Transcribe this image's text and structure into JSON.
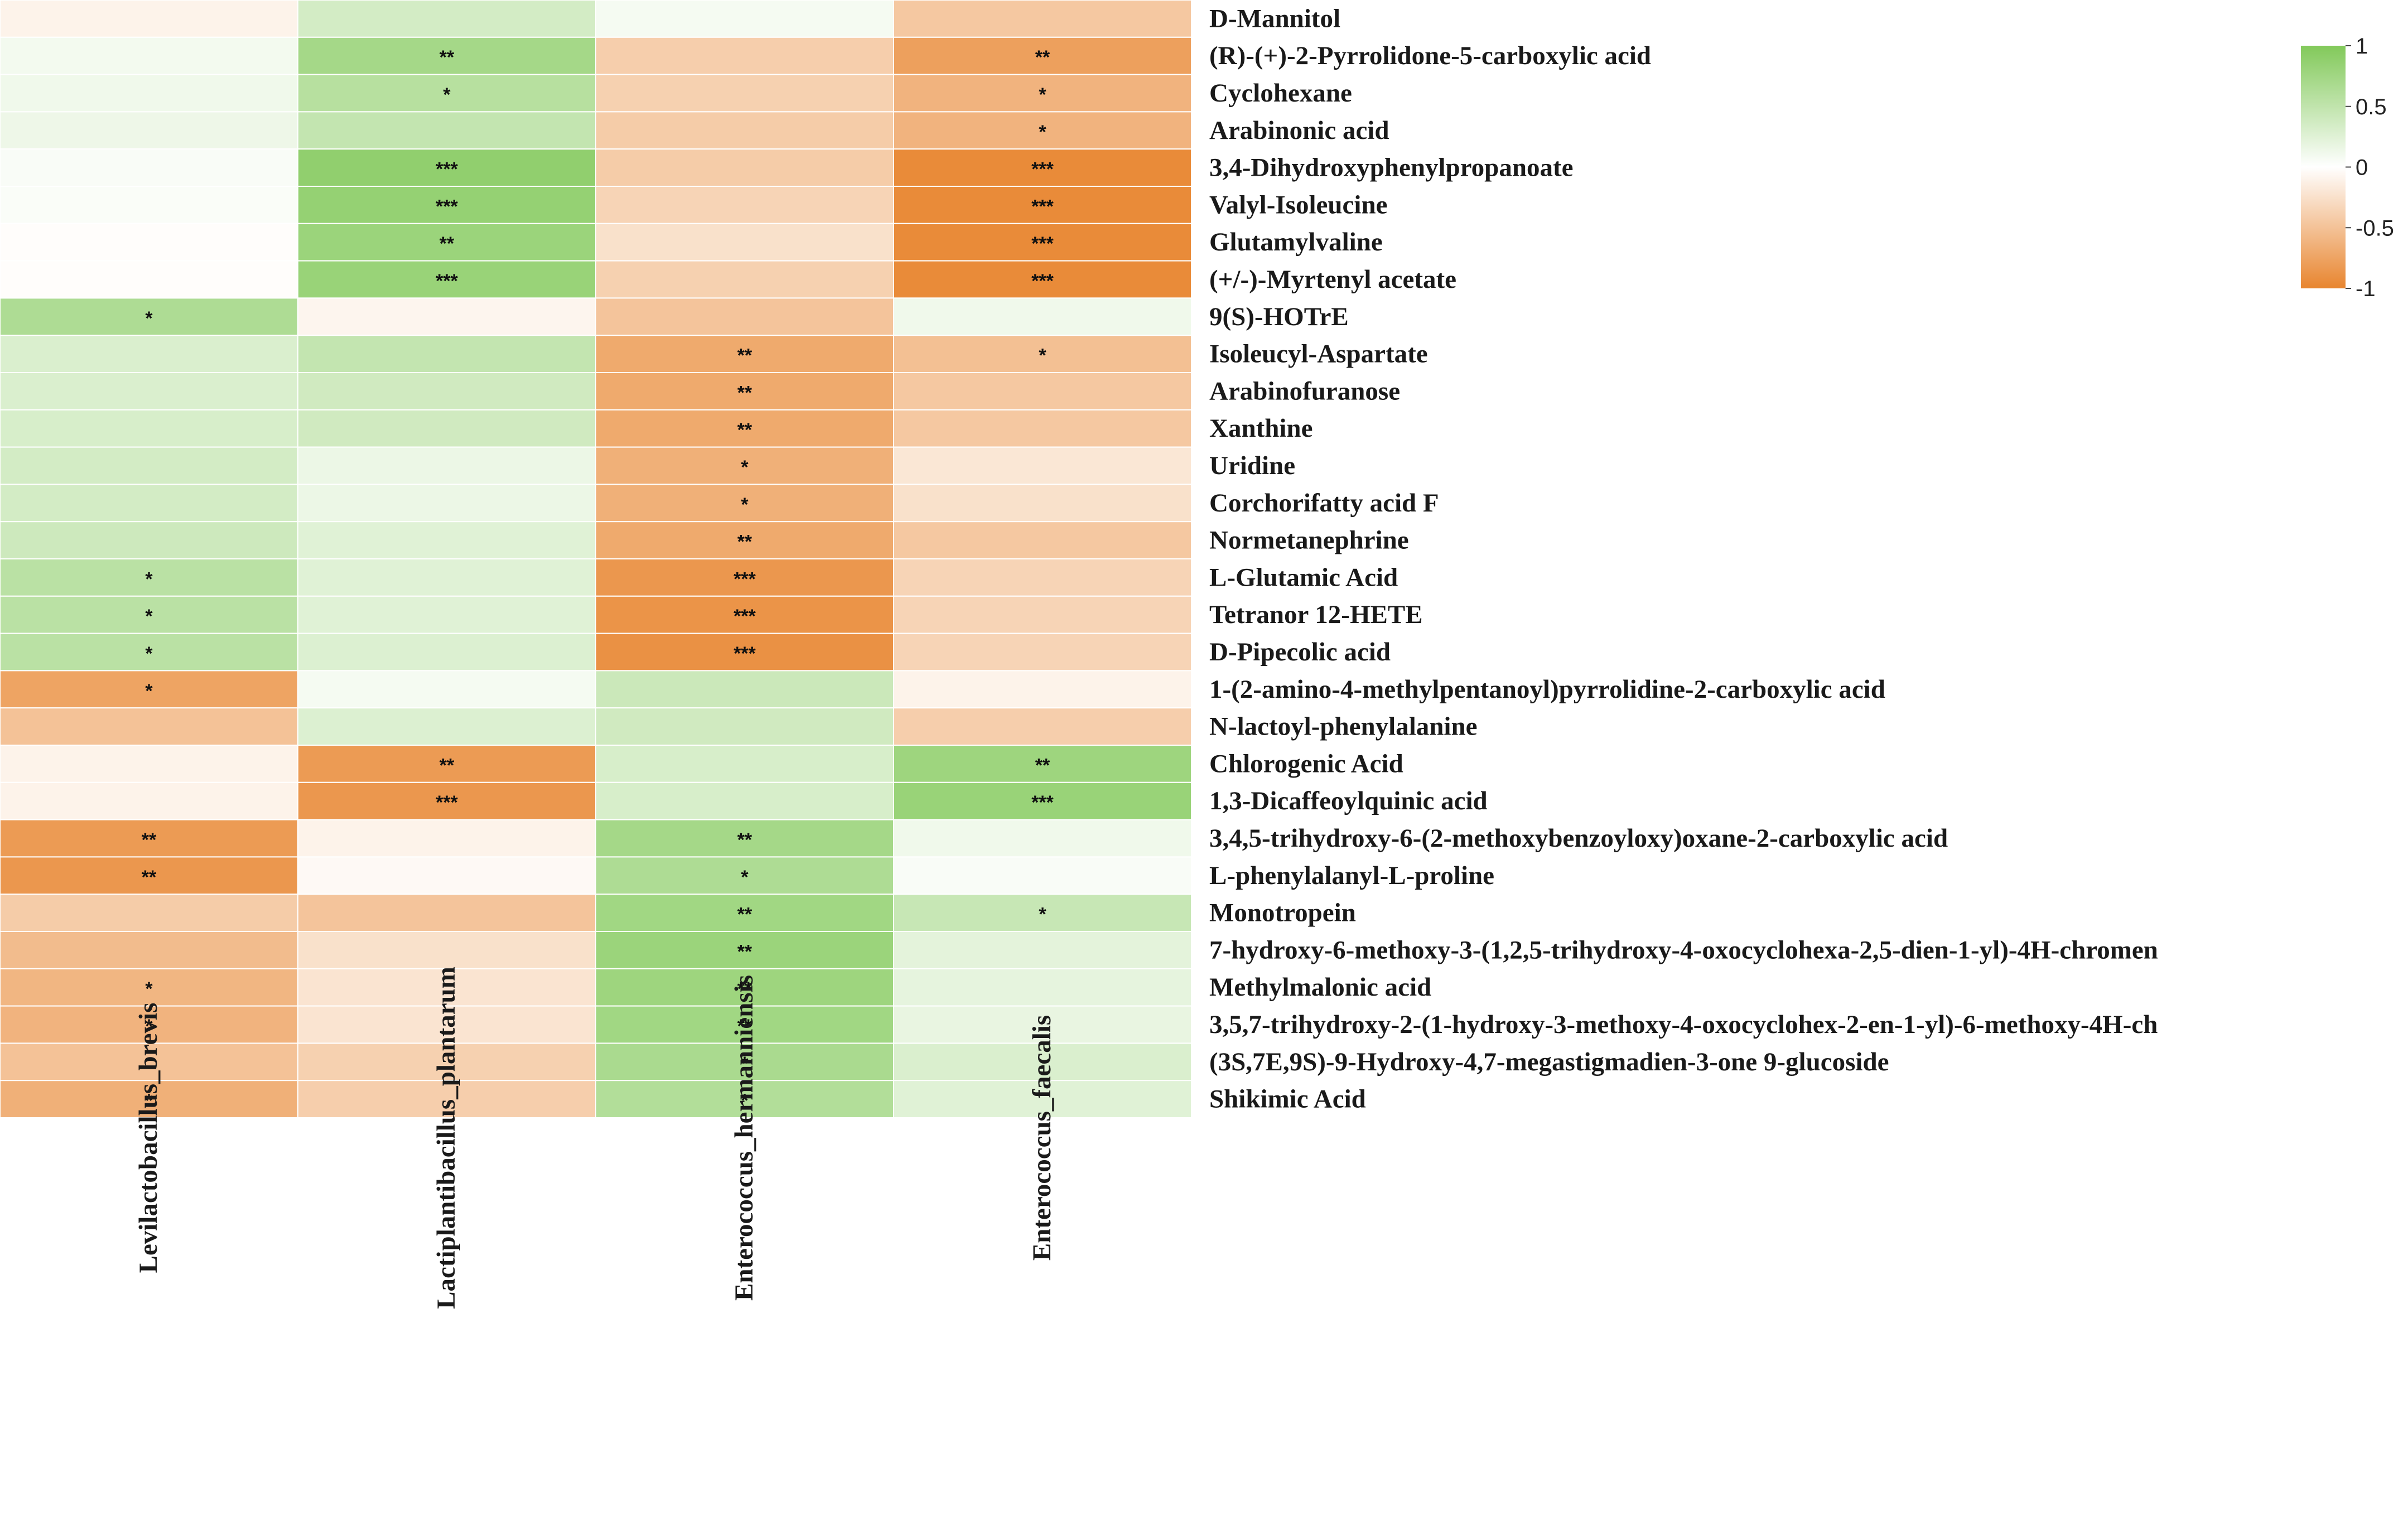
{
  "chart_data": {
    "type": "heatmap",
    "title": "",
    "columns": [
      "Levilactobacillus_brevis",
      "Lactiplantibacillus_plantarum",
      "Enterococcus_hermanniensis",
      "Enterococcus_faecalis"
    ],
    "rows": [
      "D-Mannitol",
      "(R)-(+)-2-Pyrrolidone-5-carboxylic acid",
      "Cyclohexane",
      "Arabinonic acid",
      "3,4-Dihydroxyphenylpropanoate",
      "Valyl-Isoleucine",
      "Glutamylvaline",
      "(+/-)-Myrtenyl acetate",
      "9(S)-HOTrE",
      "Isoleucyl-Aspartate",
      "Arabinofuranose",
      "Xanthine",
      "Uridine",
      "Corchorifatty acid F",
      "Normetanephrine",
      "L-Glutamic Acid",
      "Tetranor 12-HETE",
      "D-Pipecolic acid",
      "1-(2-amino-4-methylpentanoyl)pyrrolidine-2-carboxylic acid",
      "N-lactoyl-phenylalanine",
      "Chlorogenic Acid",
      "1,3-Dicaffeoylquinic acid",
      "3,4,5-trihydroxy-6-(2-methoxybenzoyloxy)oxane-2-carboxylic acid",
      "L-phenylalanyl-L-proline",
      "Monotropein",
      "7-hydroxy-6-methoxy-3-(1,2,5-trihydroxy-4-oxocyclohexa-2,5-dien-1-yl)-4H-chromen",
      "Methylmalonic acid",
      "3,5,7-trihydroxy-2-(1-hydroxy-3-methoxy-4-oxocyclohex-2-en-1-yl)-6-methoxy-4H-ch",
      "(3S,7E,9S)-9-Hydroxy-4,7-megastigmadien-3-one 9-glucoside",
      "Shikimic Acid"
    ],
    "values": [
      [
        -0.1,
        0.35,
        0.08,
        -0.45
      ],
      [
        0.1,
        0.72,
        -0.4,
        -0.78
      ],
      [
        0.12,
        0.58,
        -0.38,
        -0.62
      ],
      [
        0.14,
        0.48,
        -0.42,
        -0.62
      ],
      [
        0.05,
        0.88,
        -0.42,
        -0.95
      ],
      [
        0.04,
        0.85,
        -0.35,
        -0.95
      ],
      [
        -0.02,
        0.8,
        -0.25,
        -0.95
      ],
      [
        -0.02,
        0.82,
        -0.38,
        -0.95
      ],
      [
        0.65,
        -0.08,
        -0.48,
        0.12
      ],
      [
        0.3,
        0.48,
        -0.7,
        -0.52
      ],
      [
        0.3,
        0.38,
        -0.7,
        -0.45
      ],
      [
        0.32,
        0.38,
        -0.7,
        -0.45
      ],
      [
        0.35,
        0.15,
        -0.65,
        -0.2
      ],
      [
        0.35,
        0.15,
        -0.65,
        -0.25
      ],
      [
        0.4,
        0.25,
        -0.7,
        -0.45
      ],
      [
        0.55,
        0.25,
        -0.85,
        -0.35
      ],
      [
        0.55,
        0.25,
        -0.88,
        -0.35
      ],
      [
        0.55,
        0.28,
        -0.9,
        -0.35
      ],
      [
        -0.75,
        0.08,
        0.42,
        -0.1
      ],
      [
        -0.5,
        0.28,
        0.38,
        -0.4
      ],
      [
        -0.1,
        -0.82,
        0.32,
        0.78
      ],
      [
        -0.1,
        -0.85,
        0.32,
        0.82
      ],
      [
        -0.82,
        -0.1,
        0.72,
        0.12
      ],
      [
        -0.85,
        -0.05,
        0.65,
        0.05
      ],
      [
        -0.42,
        -0.48,
        0.75,
        0.45
      ],
      [
        -0.55,
        -0.25,
        0.8,
        0.22
      ],
      [
        -0.6,
        -0.22,
        0.78,
        0.2
      ],
      [
        -0.62,
        -0.22,
        0.75,
        0.18
      ],
      [
        -0.5,
        -0.38,
        0.68,
        0.3
      ],
      [
        -0.65,
        -0.4,
        0.62,
        0.25
      ]
    ],
    "significance": [
      [
        "",
        "",
        "",
        ""
      ],
      [
        "",
        "**",
        "",
        "**"
      ],
      [
        "",
        "*",
        "",
        "*"
      ],
      [
        "",
        "",
        "",
        "*"
      ],
      [
        "",
        "***",
        "",
        "***"
      ],
      [
        "",
        "***",
        "",
        "***"
      ],
      [
        "",
        "**",
        "",
        "***"
      ],
      [
        "",
        "***",
        "",
        "***"
      ],
      [
        "*",
        "",
        "",
        ""
      ],
      [
        "",
        "",
        "**",
        "*"
      ],
      [
        "",
        "",
        "**",
        ""
      ],
      [
        "",
        "",
        "**",
        ""
      ],
      [
        "",
        "",
        "*",
        ""
      ],
      [
        "",
        "",
        "*",
        ""
      ],
      [
        "",
        "",
        "**",
        ""
      ],
      [
        "*",
        "",
        "***",
        ""
      ],
      [
        "*",
        "",
        "***",
        ""
      ],
      [
        "*",
        "",
        "***",
        ""
      ],
      [
        "*",
        "",
        "",
        ""
      ],
      [
        "",
        "",
        "",
        ""
      ],
      [
        "",
        "**",
        "",
        "**"
      ],
      [
        "",
        "***",
        "",
        "***"
      ],
      [
        "**",
        "",
        "**",
        ""
      ],
      [
        "**",
        "",
        "*",
        ""
      ],
      [
        "",
        "",
        "**",
        "*"
      ],
      [
        "",
        "",
        "**",
        ""
      ],
      [
        "*",
        "",
        "**",
        ""
      ],
      [
        "*",
        "",
        "**",
        ""
      ],
      [
        "",
        "",
        "*",
        ""
      ],
      [
        "*",
        "",
        "*",
        ""
      ]
    ],
    "color_scale": {
      "min": -1,
      "max": 1,
      "low_color": "#e8852f",
      "mid_color": "#ffffff",
      "high_color": "#82c95a",
      "ticks": [
        1,
        0.5,
        0,
        -0.5,
        -1
      ],
      "tick_labels": [
        "1",
        "0.5",
        "0",
        "-0.5",
        "-1"
      ],
      "legend_position": "top-right"
    }
  }
}
